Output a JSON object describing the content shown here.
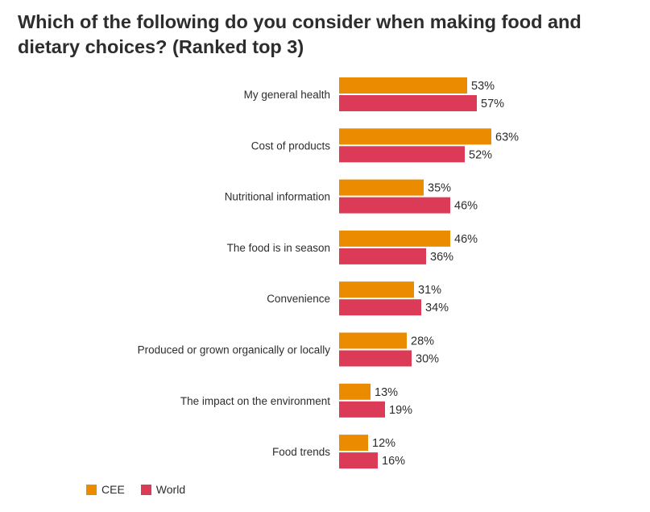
{
  "chart_data": {
    "type": "bar",
    "orientation": "horizontal",
    "title": "Which of the following do you consider when making food and dietary choices? (Ranked top 3)",
    "categories": [
      "My general health",
      "Cost of products",
      "Nutritional information",
      "The food is in season",
      "Convenience",
      "Produced or grown organically or locally",
      "The impact on the environment",
      "Food trends"
    ],
    "series": [
      {
        "name": "CEE",
        "color": "#eb8c00",
        "values": [
          53,
          63,
          35,
          46,
          31,
          28,
          13,
          12
        ]
      },
      {
        "name": "World",
        "color": "#db3b57",
        "values": [
          57,
          52,
          46,
          36,
          34,
          30,
          19,
          16
        ]
      }
    ],
    "value_suffix": "%",
    "xlim": [
      0,
      100
    ],
    "grid": false,
    "legend_position": "bottom-left"
  }
}
